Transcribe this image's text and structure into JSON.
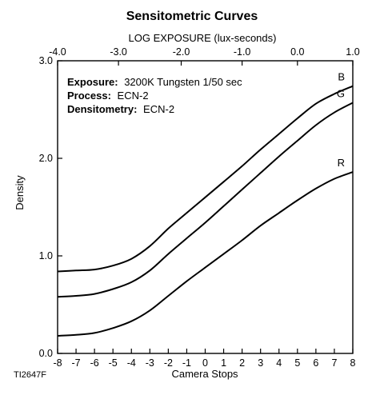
{
  "chart_data": {
    "type": "line",
    "title": "Sensitometric Curves",
    "top_xlabel": "LOG EXPOSURE (lux-seconds)",
    "xlabel": "Camera Stops",
    "ylabel": "Density",
    "xlim": [
      -8,
      8
    ],
    "ylim": [
      0.0,
      3.0
    ],
    "x_ticks": [
      -8,
      -7,
      -6,
      -5,
      -4,
      -3,
      -2,
      -1,
      0,
      1,
      2,
      3,
      4,
      5,
      6,
      7,
      8
    ],
    "top_ticks": [
      {
        "stop": -8.0,
        "label": "-4.0"
      },
      {
        "stop": -4.7,
        "label": "-3.0"
      },
      {
        "stop": -1.3,
        "label": "-2.0"
      },
      {
        "stop": 2.0,
        "label": "-1.0"
      },
      {
        "stop": 5.0,
        "label": "0.0"
      },
      {
        "stop": 8.0,
        "label": "1.0"
      }
    ],
    "y_ticks": [
      {
        "value": 0.0,
        "label": "0.0"
      },
      {
        "value": 1.0,
        "label": "1.0"
      },
      {
        "value": 2.0,
        "label": "2.0"
      },
      {
        "value": 3.0,
        "label": "3.0"
      }
    ],
    "grid": false,
    "series": [
      {
        "name": "B",
        "x": [
          -8,
          -7,
          -6,
          -5,
          -4,
          -3,
          -2,
          -1,
          0,
          1,
          2,
          3,
          4,
          5,
          6,
          7,
          8
        ],
        "values": [
          0.84,
          0.85,
          0.86,
          0.9,
          0.97,
          1.1,
          1.28,
          1.44,
          1.6,
          1.76,
          1.92,
          2.09,
          2.25,
          2.41,
          2.56,
          2.66,
          2.74
        ]
      },
      {
        "name": "G",
        "x": [
          -8,
          -7,
          -6,
          -5,
          -4,
          -3,
          -2,
          -1,
          0,
          1,
          2,
          3,
          4,
          5,
          6,
          7,
          8
        ],
        "values": [
          0.58,
          0.59,
          0.61,
          0.66,
          0.73,
          0.85,
          1.02,
          1.18,
          1.34,
          1.51,
          1.68,
          1.85,
          2.02,
          2.18,
          2.34,
          2.47,
          2.57
        ]
      },
      {
        "name": "R",
        "x": [
          -8,
          -7,
          -6,
          -5,
          -4,
          -3,
          -2,
          -1,
          0,
          1,
          2,
          3,
          4,
          5,
          6,
          7,
          8
        ],
        "values": [
          0.18,
          0.19,
          0.21,
          0.26,
          0.33,
          0.44,
          0.59,
          0.74,
          0.88,
          1.02,
          1.16,
          1.31,
          1.44,
          1.57,
          1.69,
          1.79,
          1.86
        ]
      }
    ]
  },
  "info": {
    "exposure_label": "Exposure:",
    "exposure_value": "3200K Tungsten 1/50 sec",
    "process_label": "Process:",
    "process_value": "ECN-2",
    "densitometry_label": "Densitometry:",
    "densitometry_value": "ECN-2"
  },
  "figure_code": "TI2647F",
  "colors": {
    "line": "#000000",
    "text": "#111111",
    "background": "#ffffff"
  }
}
